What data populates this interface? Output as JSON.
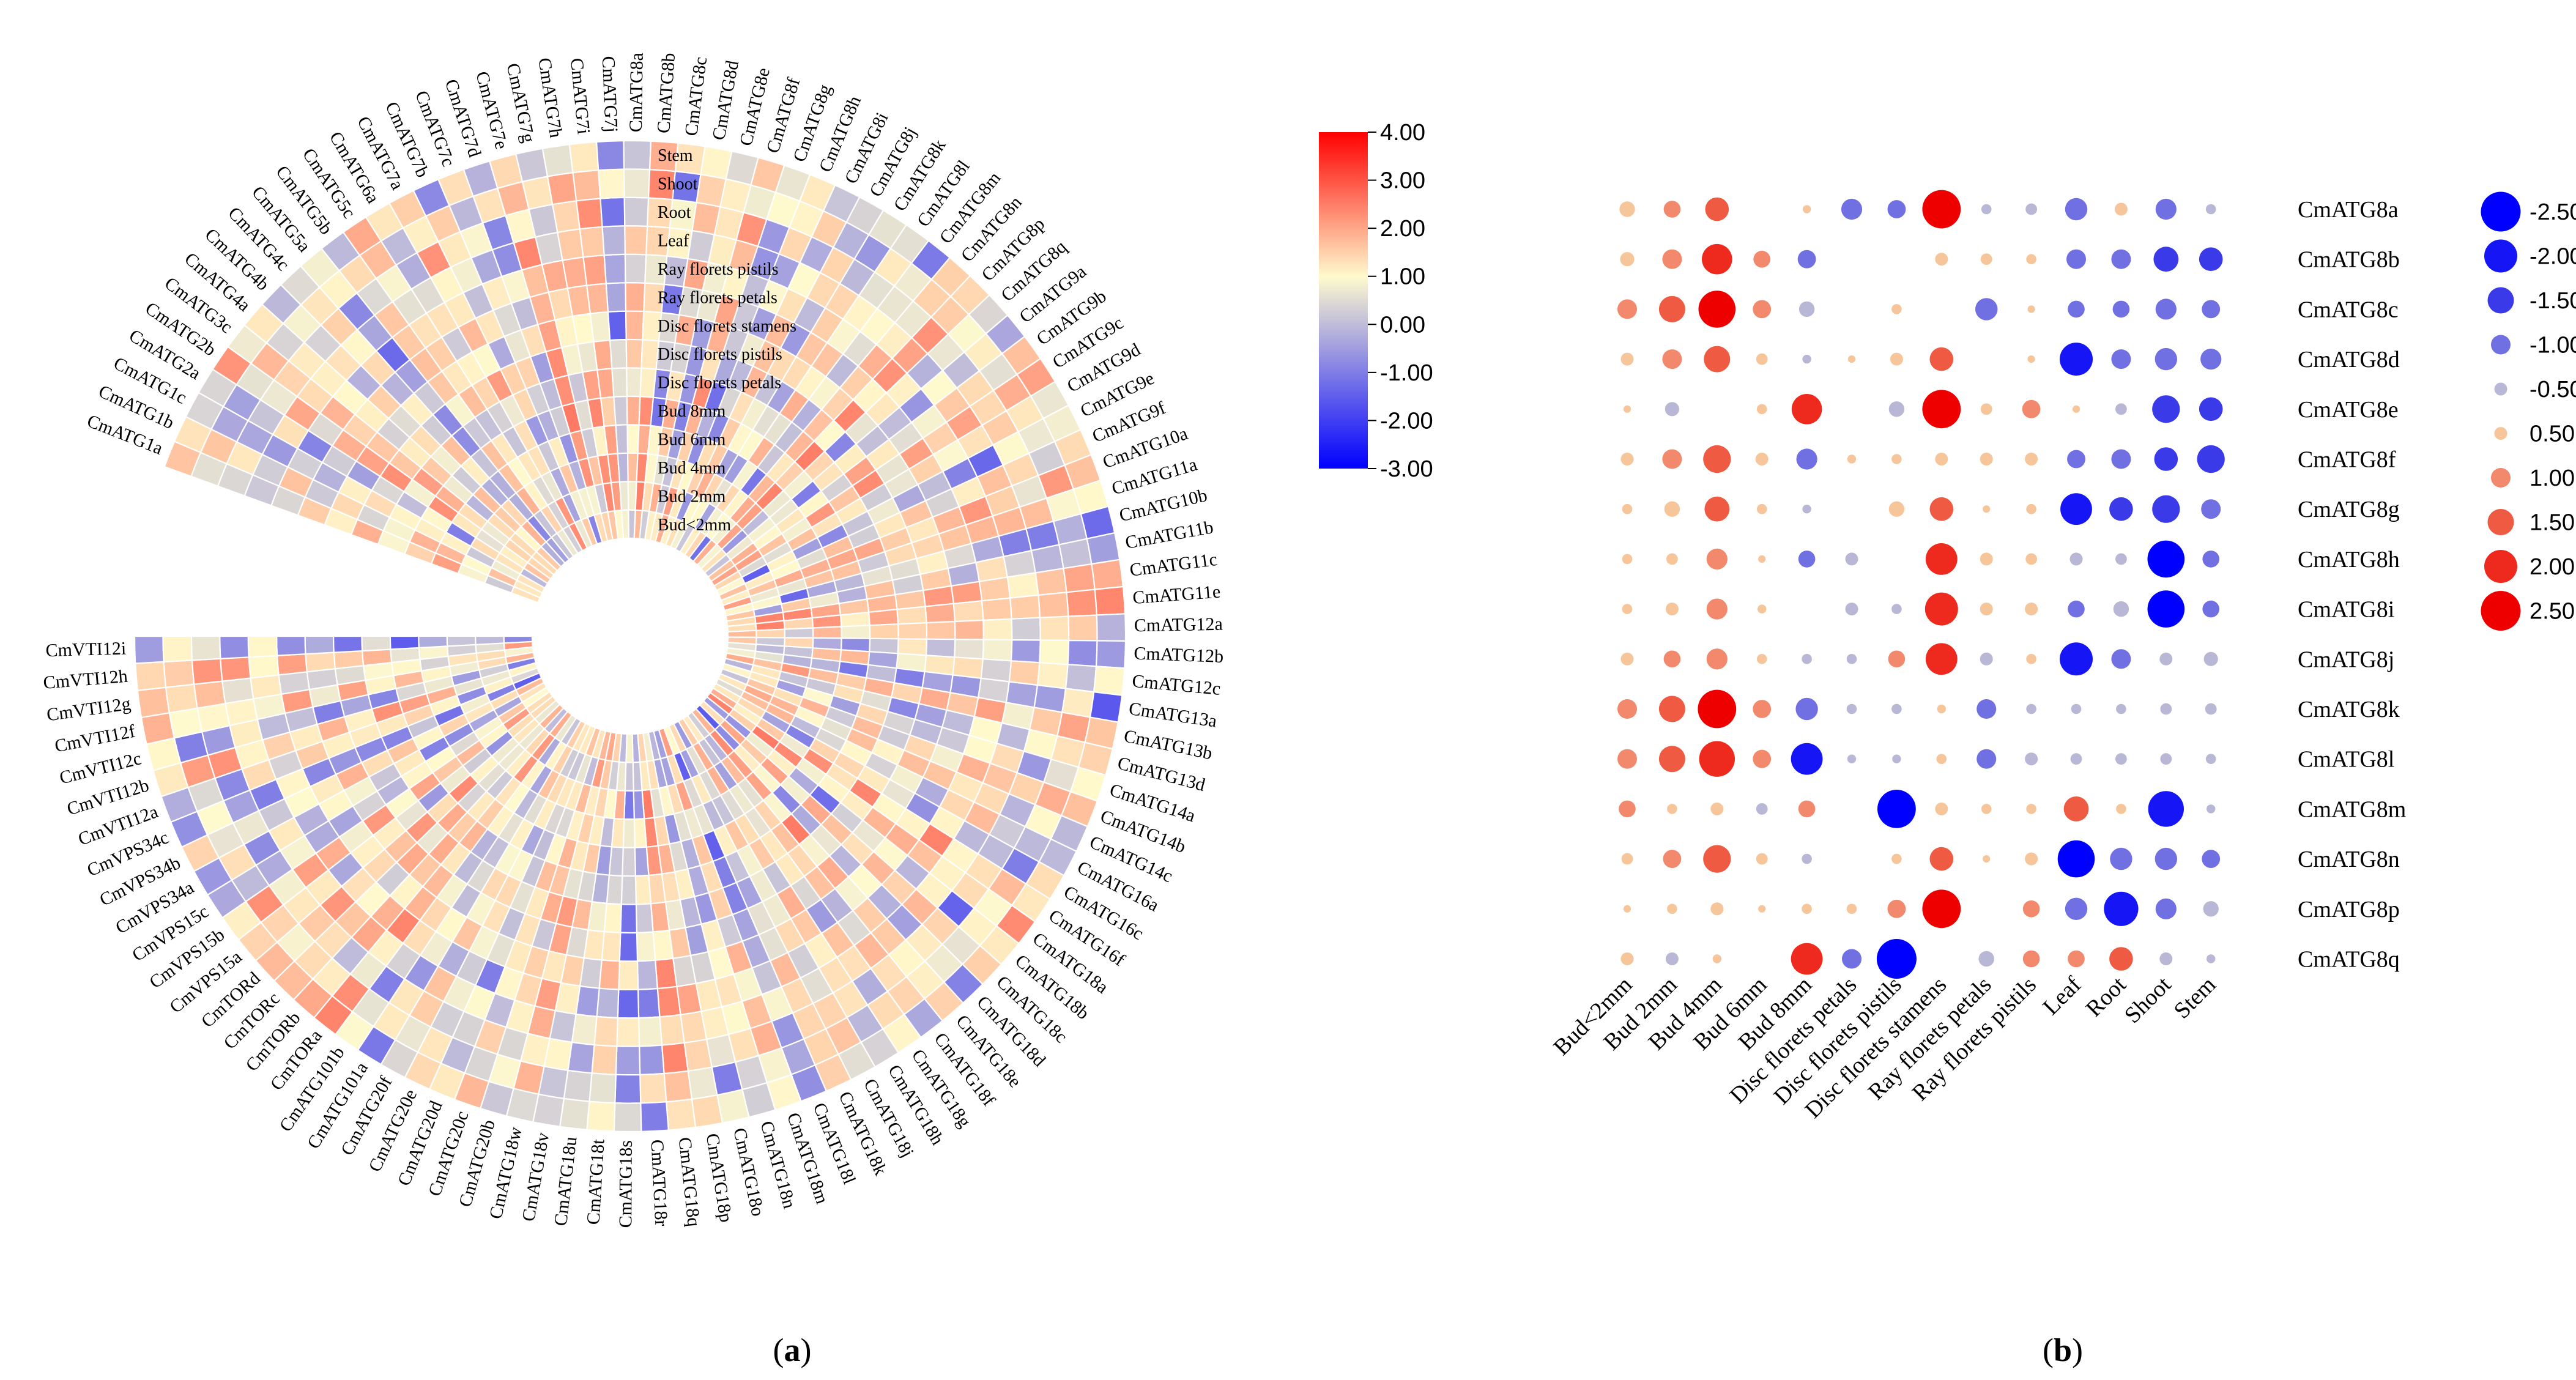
{
  "panel_a": {
    "label_open": "(",
    "label_letter": "a",
    "label_close": ")"
  },
  "panel_b": {
    "label_open": "(",
    "label_letter": "b",
    "label_close": ")"
  },
  "chart_data": [
    {
      "type": "heatmap",
      "layout": "circular",
      "title": "",
      "rings": [
        "Bud<2mm",
        "Bud 2mm",
        "Bud 4mm",
        "Bud 6mm",
        "Bud 8mm",
        "Disc florets petals",
        "Disc florets pistils",
        "Disc florets stamens",
        "Ray florets petals",
        "Ray florets pistils",
        "Leaf",
        "Root",
        "Shoot",
        "Stem"
      ],
      "genes": [
        "CmATG1a",
        "CmATG1b",
        "CmATG1c",
        "CmATG2a",
        "CmATG2b",
        "CmATG3c",
        "CmATG4a",
        "CmATG4b",
        "CmATG4c",
        "CmATG5a",
        "CmATG5b",
        "CmATG5c",
        "CmATG6a",
        "CmATG7a",
        "CmATG7b",
        "CmATG7c",
        "CmATG7d",
        "CmATG7e",
        "CmATG7g",
        "CmATG7h",
        "CmATG7i",
        "CmATG7j",
        "CmATG8a",
        "CmATG8b",
        "CmATG8c",
        "CmATG8d",
        "CmATG8e",
        "CmATG8f",
        "CmATG8g",
        "CmATG8h",
        "CmATG8i",
        "CmATG8j",
        "CmATG8k",
        "CmATG8l",
        "CmATG8m",
        "CmATG8n",
        "CmATG8p",
        "CmATG8q",
        "CmATG9a",
        "CmATG9b",
        "CmATG9c",
        "CmATG9d",
        "CmATG9e",
        "CmATG9f",
        "CmATG10a",
        "CmATG11a",
        "CmATG10b",
        "CmATG11b",
        "CmATG11c",
        "CmATG11e",
        "CmATG12a",
        "CmATG12b",
        "CmATG12c",
        "CmATG13a",
        "CmATG13b",
        "CmATG13d",
        "CmATG14a",
        "CmATG14b",
        "CmATG14c",
        "CmATG16a",
        "CmATG16c",
        "CmATG16f",
        "CmATG18a",
        "CmATG18b",
        "CmATG18c",
        "CmATG18d",
        "CmATG18e",
        "CmATG18f",
        "CmATG18g",
        "CmATG18h",
        "CmATG18j",
        "CmATG18k",
        "CmATG18l",
        "CmATG18m",
        "CmATG18n",
        "CmATG18o",
        "CmATG18p",
        "CmATG18q",
        "CmATG18r",
        "CmATG18s",
        "CmATG18t",
        "CmATG18u",
        "CmATG18v",
        "CmATG18w",
        "CmATG20b",
        "CmATG20c",
        "CmATG20d",
        "CmATG20e",
        "CmATG20f",
        "CmATG101a",
        "CmATG101b",
        "CmTORa",
        "CmTORb",
        "CmTORc",
        "CmTORd",
        "CmVPS15a",
        "CmVPS15b",
        "CmVPS15c",
        "CmVPS34a",
        "CmVPS34b",
        "CmVPS34c",
        "CmVTI12a",
        "CmVTI12b",
        "CmVTI12c",
        "CmVTI12f",
        "CmVTI12g",
        "CmVTI12h",
        "CmVTI12i"
      ],
      "colorbar": {
        "ticks": [
          "4.00",
          "3.00",
          "2.00",
          "1.00",
          "0.00",
          "-1.00",
          "-2.00",
          "-3.00"
        ],
        "min": -3,
        "max": 4,
        "colors": [
          "#0000ff",
          "#fffacd",
          "#ff0000"
        ]
      },
      "note": "cell values estimated from colour; range -3 to 4"
    },
    {
      "type": "scatter",
      "subtype": "bubble-matrix",
      "rows": [
        "CmATG8a",
        "CmATG8b",
        "CmATG8c",
        "CmATG8d",
        "CmATG8e",
        "CmATG8f",
        "CmATG8g",
        "CmATG8h",
        "CmATG8i",
        "CmATG8j",
        "CmATG8k",
        "CmATG8l",
        "CmATG8m",
        "CmATG8n",
        "CmATG8p",
        "CmATG8q"
      ],
      "columns": [
        "Bud<2mm",
        "Bud 2mm",
        "Bud 4mm",
        "Bud 6mm",
        "Bud 8mm",
        "Disc florets petals",
        "Disc florets pistils",
        "Disc florets stamens",
        "Ray florets petals",
        "Ray florets pistils",
        "Leaf",
        "Root",
        "Shoot",
        "Stem"
      ],
      "values": [
        [
          0.7,
          0.8,
          1.3,
          0,
          0.15,
          -1.1,
          -0.9,
          2.4,
          -0.3,
          -0.4,
          -1.2,
          0.5,
          -1.1,
          -0.3
        ],
        [
          0.6,
          1.0,
          1.8,
          0.8,
          -0.9,
          0,
          0,
          0.5,
          0.4,
          0.3,
          -1.0,
          -1.0,
          -1.4,
          -1.3
        ],
        [
          1.0,
          1.5,
          2.3,
          0.9,
          -0.7,
          0,
          0.3,
          0,
          -1.2,
          0.1,
          -0.8,
          -0.8,
          -1.1,
          -0.9
        ],
        [
          0.5,
          1.0,
          1.5,
          0.4,
          -0.2,
          0.1,
          0.5,
          1.3,
          0,
          0.1,
          -2.0,
          -1.0,
          -1.2,
          -1.1
        ],
        [
          0.1,
          -0.6,
          0,
          0.3,
          1.8,
          0,
          -0.7,
          2.4,
          0.4,
          0.9,
          0.1,
          -0.4,
          -1.6,
          -1.3
        ],
        [
          0.5,
          1.0,
          1.6,
          0.5,
          -1.1,
          0.2,
          0.3,
          0.5,
          0.5,
          0.5,
          -0.9,
          -1.0,
          -1.3,
          -1.6
        ],
        [
          0.3,
          0.7,
          1.4,
          0.3,
          -0.2,
          0,
          0.7,
          1.3,
          0.1,
          0.3,
          -1.9,
          -1.3,
          -1.6,
          -1.0
        ],
        [
          0.3,
          0.4,
          1.1,
          0.1,
          -0.8,
          -0.5,
          0,
          1.9,
          0.5,
          0.4,
          -0.5,
          -0.4,
          -2.3,
          -0.8
        ],
        [
          0.3,
          0.5,
          1.1,
          0.2,
          0,
          -0.5,
          -0.3,
          2.0,
          0.5,
          0.5,
          -0.8,
          -0.7,
          -2.3,
          -0.8
        ],
        [
          0.5,
          0.8,
          1.1,
          0.3,
          -0.3,
          -0.3,
          0.8,
          1.9,
          -0.5,
          0.3,
          -2.0,
          -1.0,
          -0.5,
          -0.6
        ],
        [
          1.0,
          1.5,
          2.4,
          0.9,
          -1.2,
          -0.3,
          -0.3,
          0.2,
          -1.0,
          -0.3,
          -0.3,
          -0.3,
          -0.4,
          -0.4
        ],
        [
          1.0,
          1.5,
          2.2,
          0.9,
          -1.9,
          -0.2,
          -0.2,
          0.3,
          -1.0,
          -0.5,
          -0.4,
          -0.4,
          -0.4,
          -0.3
        ],
        [
          0.8,
          0.3,
          0.5,
          -0.4,
          0.8,
          0,
          -2.4,
          0.5,
          0.3,
          0.3,
          1.4,
          0.3,
          -2.2,
          -0.2
        ],
        [
          0.4,
          0.9,
          1.6,
          0.4,
          -0.3,
          0,
          0.3,
          1.3,
          0.1,
          0.5,
          -2.3,
          -1.2,
          -1.2,
          -0.9
        ],
        [
          0.1,
          0.3,
          0.5,
          0.1,
          0.3,
          0.3,
          0.9,
          2.4,
          0,
          0.8,
          -1.2,
          -2.1,
          -1.1,
          -0.7
        ],
        [
          0.5,
          -0.5,
          0.2,
          0,
          1.9,
          -1.0,
          -2.5,
          0,
          -0.7,
          0.8,
          0.8,
          1.3,
          -0.5,
          -0.2
        ]
      ],
      "legend": {
        "entries": [
          "-2.50",
          "-2.00",
          "-1.50",
          "-1.00",
          "-0.50",
          "0.50",
          "1.00",
          "1.50",
          "2.00",
          "2.50"
        ],
        "values": [
          -2.5,
          -2.0,
          -1.5,
          -1.0,
          -0.5,
          0.5,
          1.0,
          1.5,
          2.0,
          2.5
        ],
        "colors": [
          "#0000ff",
          "#1515f5",
          "#3a3ae8",
          "#7070e2",
          "#b8b8d6",
          "#f6c69a",
          "#f2886c",
          "#ef5a42",
          "#ee2a1e",
          "#ee0000"
        ],
        "placement": "right"
      }
    }
  ]
}
